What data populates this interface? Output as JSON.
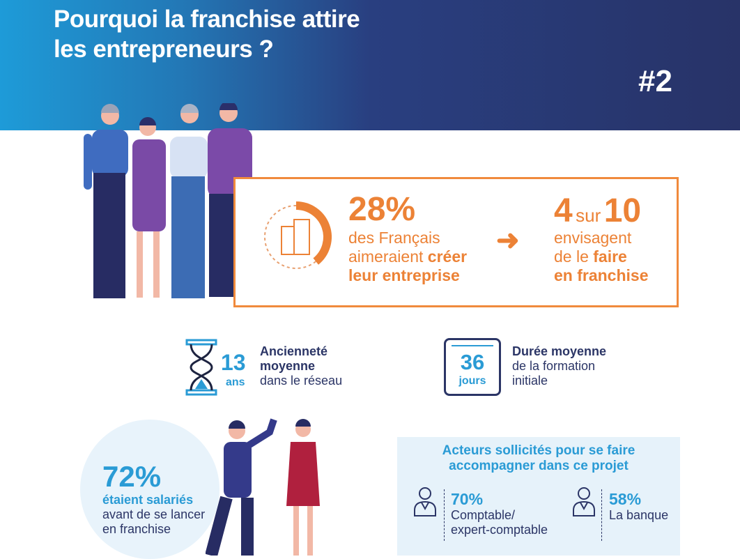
{
  "header": {
    "title_line1": "Pourquoi la franchise attire",
    "title_line2": "les entrepreneurs ?",
    "issue": "#2"
  },
  "highlight": {
    "left": {
      "value": "28%",
      "line1": "des Français",
      "line2_plain": "aimeraient ",
      "line2_bold": "créer",
      "line3": "leur entreprise",
      "donut_fraction": 0.28
    },
    "right": {
      "value_a": "4",
      "sur": "sur",
      "value_b": "10",
      "line1": "envisagent",
      "line2_plain": "de le ",
      "line2_bold": "faire",
      "line3": "en franchise"
    }
  },
  "seniority": {
    "value": "13",
    "unit": "ans",
    "title1": "Ancienneté",
    "title2": "moyenne",
    "desc": "dans le réseau"
  },
  "training": {
    "value": "36",
    "unit": "jours",
    "title": "Durée moyenne",
    "desc1": "de la formation",
    "desc2": "initiale"
  },
  "employees": {
    "value": "72%",
    "line1": "étaient salariés",
    "line2": "avant de se lancer",
    "line3": "en franchise"
  },
  "actors": {
    "title1": "Acteurs sollicités pour se faire",
    "title2": "accompagner dans ce projet",
    "items": [
      {
        "value": "70%",
        "label1": "Comptable/",
        "label2": "expert-comptable"
      },
      {
        "value": "58%",
        "label1": "La banque",
        "label2": ""
      }
    ]
  },
  "colors": {
    "orange": "#ec8236",
    "blue": "#2a9bd5",
    "navy": "#2b3566",
    "light_blue": "#e6f2fa"
  }
}
